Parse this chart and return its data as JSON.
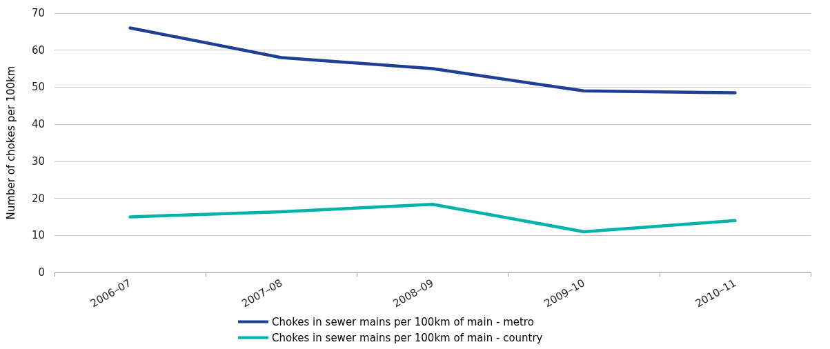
{
  "chart_data": {
    "type": "line",
    "ylabel": "Number of chokes per 100km",
    "categories": [
      "2006–07",
      "2007–08",
      "2008–09",
      "2009–10",
      "2010–11"
    ],
    "series": [
      {
        "name": "Chokes in sewer mains per 100km of main - metro",
        "color": "#1f3f94",
        "values": [
          66,
          58,
          55,
          49,
          48.5
        ]
      },
      {
        "name": "Chokes in sewer mains per 100km of main - country",
        "color": "#00b2a9",
        "values": [
          15,
          16.4,
          18.4,
          11,
          14
        ]
      }
    ],
    "ylim": [
      0,
      70
    ],
    "yticks": [
      0,
      10,
      20,
      30,
      40,
      50,
      60,
      70
    ],
    "grid": "y",
    "legend": "bottom",
    "marker": "none",
    "line_style": "solid"
  }
}
